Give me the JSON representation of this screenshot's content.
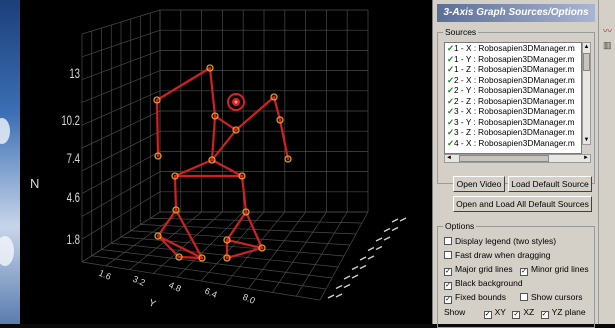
{
  "panel": {
    "title": "3-Axis Graph Sources/Options",
    "sources_label": "Sources",
    "sources": [
      "1 - X : Robosapien3DManager.m",
      "1 - Y : Robosapien3DManager.m",
      "1 - Z : Robosapien3DManager.m",
      "2 - X : Robosapien3DManager.m",
      "2 - Y : Robosapien3DManager.m",
      "2 - Z : Robosapien3DManager.m",
      "3 - X : Robosapien3DManager.m",
      "3 - Y : Robosapien3DManager.m",
      "3 - Z : Robosapien3DManager.m",
      "4 - X : Robosapien3DManager.m"
    ],
    "buttons": {
      "open_video": "Open Video",
      "load_default": "Load Default Source",
      "open_load_all": "Open and Load All Default Sources"
    },
    "options_label": "Options",
    "options": {
      "display_legend": "Display legend (two styles)",
      "fast_draw": "Fast draw when dragging",
      "major_grid": "Major grid lines",
      "minor_grid": "Minor grid lines",
      "black_bg": "Black background",
      "fixed_bounds": "Fixed bounds",
      "show_cursors": "Show cursors",
      "show": "Show",
      "xy": "XY",
      "xz": "XZ",
      "yz": "YZ plane"
    }
  },
  "plot": {
    "z_axis_label": "N",
    "z_ticks": [
      "13",
      "10.2",
      "7.4",
      "4.6",
      "1.8"
    ],
    "y_axis_label": "Y",
    "y_ticks": [
      "1.6",
      "3.2",
      "4.8",
      "6.4",
      "8.0"
    ],
    "colors": {
      "skeleton": "#d0201f",
      "joint": "#d9a020",
      "grid": "#4a4a4a",
      "cursor": "#e02020"
    }
  }
}
